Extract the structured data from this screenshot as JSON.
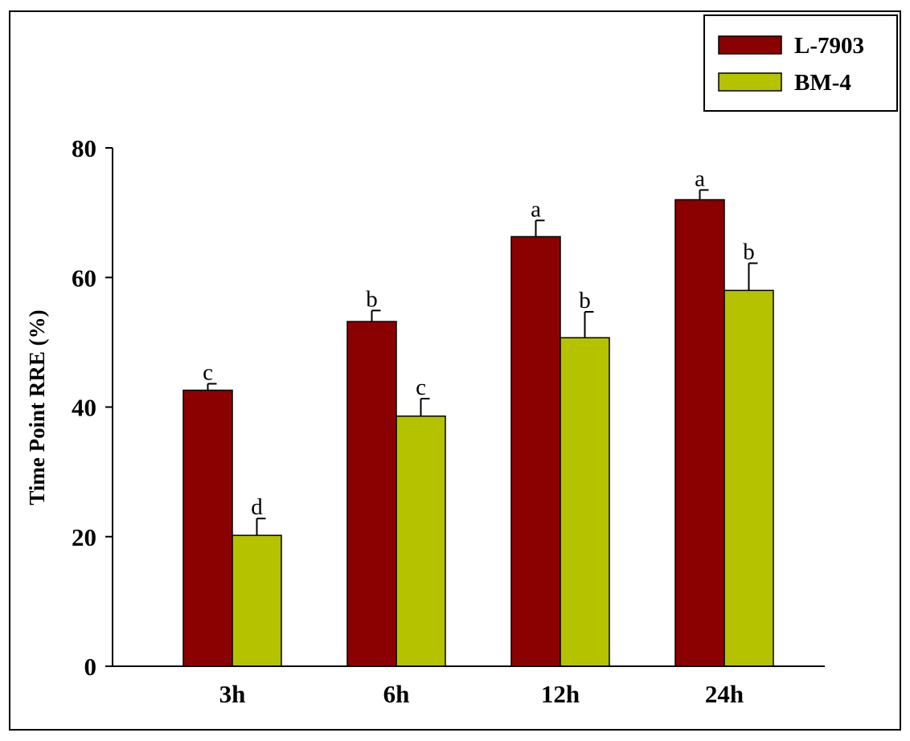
{
  "chart_data": {
    "type": "bar",
    "title": "",
    "xlabel": "",
    "ylabel": "Time Point RRE (%)",
    "ylim": [
      0,
      80
    ],
    "yticks": [
      "0",
      "20",
      "40",
      "60",
      "80"
    ],
    "categories": [
      "3h",
      "6h",
      "12h",
      "24h"
    ],
    "grid": false,
    "legend_position": "top-right",
    "series": [
      {
        "name": "L-7903",
        "color": "#8b0000",
        "values": [
          42.6,
          53.2,
          66.3,
          72.0
        ],
        "errors": [
          1.0,
          1.7,
          2.5,
          1.5
        ],
        "significance": [
          "c",
          "b",
          "a",
          "a"
        ]
      },
      {
        "name": "BM-4",
        "color": "#b5c200",
        "values": [
          20.2,
          38.6,
          50.7,
          58.0
        ],
        "errors": [
          2.6,
          2.7,
          4.0,
          4.2
        ],
        "significance": [
          "d",
          "c",
          "b",
          "b"
        ]
      }
    ]
  }
}
